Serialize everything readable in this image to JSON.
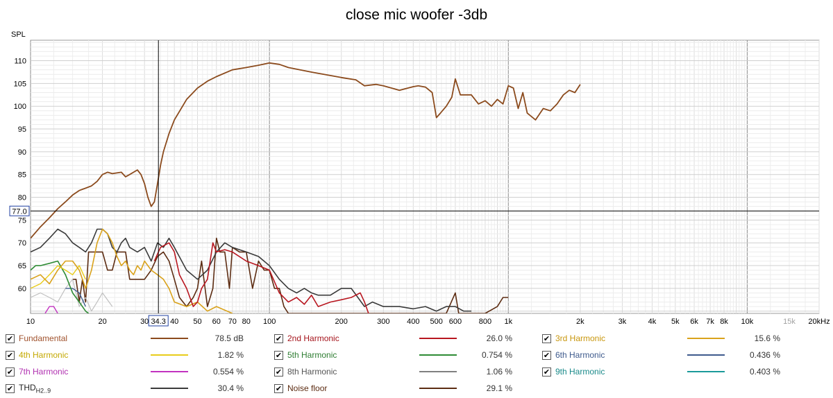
{
  "chart_data": {
    "type": "line",
    "title": "close mic woofer -3db",
    "ylabel": "SPL",
    "ylim": [
      54.5,
      114.5
    ],
    "xlim": [
      10,
      20000
    ],
    "xscale": "log",
    "grid": true,
    "cursor": {
      "x_label": "34.3",
      "y_label": "77.0",
      "x": 34.3,
      "y": 77.0
    },
    "y_ticks": [
      60,
      65,
      70,
      75,
      80,
      85,
      90,
      95,
      100,
      105,
      110
    ],
    "x_ticks": [
      {
        "v": 10,
        "t": "10"
      },
      {
        "v": 20,
        "t": "20"
      },
      {
        "v": 30,
        "t": "30"
      },
      {
        "v": 40,
        "t": "40"
      },
      {
        "v": 50,
        "t": "50"
      },
      {
        "v": 60,
        "t": "60"
      },
      {
        "v": 70,
        "t": "70"
      },
      {
        "v": 80,
        "t": "80"
      },
      {
        "v": 100,
        "t": "100"
      },
      {
        "v": 200,
        "t": "200"
      },
      {
        "v": 300,
        "t": "300"
      },
      {
        "v": 400,
        "t": "400"
      },
      {
        "v": 500,
        "t": "500"
      },
      {
        "v": 600,
        "t": "600"
      },
      {
        "v": 800,
        "t": "800"
      },
      {
        "v": 1000,
        "t": "1k"
      },
      {
        "v": 2000,
        "t": "2k"
      },
      {
        "v": 3000,
        "t": "3k"
      },
      {
        "v": 4000,
        "t": "4k"
      },
      {
        "v": 5000,
        "t": "5k"
      },
      {
        "v": 6000,
        "t": "6k"
      },
      {
        "v": 7000,
        "t": "7k"
      },
      {
        "v": 8000,
        "t": "8k"
      },
      {
        "v": 10000,
        "t": "10k"
      },
      {
        "v": 15000,
        "t": "15k"
      },
      {
        "v": 20000,
        "t": "20kHz"
      }
    ],
    "series": [
      {
        "name": "Fundamental",
        "color": "#8b4a1c",
        "width": 1.8,
        "x": [
          10,
          11,
          12,
          13,
          14,
          15,
          16,
          17,
          18,
          19,
          20,
          21,
          22,
          24,
          25,
          26,
          27,
          28,
          29,
          30,
          31,
          32,
          33,
          34,
          35,
          36,
          38,
          40,
          45,
          50,
          55,
          60,
          70,
          80,
          90,
          100,
          110,
          120,
          150,
          200,
          230,
          250,
          280,
          300,
          350,
          400,
          420,
          450,
          480,
          500,
          520,
          550,
          580,
          600,
          630,
          700,
          750,
          800,
          850,
          900,
          950,
          1000,
          1050,
          1100,
          1150,
          1200,
          1300,
          1400,
          1500,
          1600,
          1700,
          1800,
          1900,
          2000
        ],
        "y": [
          71,
          73.5,
          75.5,
          77.5,
          79,
          80.5,
          81.5,
          82,
          82.5,
          83.5,
          85,
          85.5,
          85.2,
          85.5,
          84.5,
          85,
          85.5,
          86,
          85,
          83,
          80,
          78,
          79,
          83,
          87,
          90,
          94,
          97,
          101.5,
          104,
          105.5,
          106.5,
          108,
          108.5,
          109,
          109.5,
          109.2,
          108.5,
          107.5,
          106.3,
          105.8,
          104.5,
          104.8,
          104.5,
          103.5,
          104.3,
          104.5,
          104.2,
          103,
          97.5,
          98.5,
          100,
          102,
          106,
          102.5,
          102.5,
          100.5,
          101.2,
          100,
          101.5,
          100.5,
          104.5,
          104,
          99.5,
          103,
          98.5,
          97,
          99.5,
          99,
          100.5,
          102.5,
          103.5,
          103,
          104.8
        ]
      },
      {
        "name": "2nd Harmonic",
        "color": "#b8161f",
        "width": 1.6,
        "x": [
          33,
          35,
          38,
          40,
          42,
          45,
          48,
          50,
          52,
          55,
          58,
          60,
          65,
          70,
          80,
          90,
          100,
          110,
          120,
          130,
          140,
          150,
          160,
          180,
          200,
          220,
          240,
          250,
          260
        ],
        "y": [
          66,
          69,
          70,
          68,
          63,
          60,
          56,
          57,
          60,
          62,
          70,
          68,
          68.5,
          68,
          66,
          65,
          64,
          59,
          57,
          58,
          56.5,
          58.5,
          56,
          57,
          57.5,
          58,
          59,
          57,
          54.5
        ]
      },
      {
        "name": "3rd Harmonic",
        "color": "#d9a21b",
        "width": 1.6,
        "x": [
          10,
          11,
          12,
          13,
          14,
          15,
          16,
          17,
          18,
          19,
          20,
          21,
          22,
          23,
          24,
          25,
          26,
          27,
          28,
          29,
          30,
          32,
          34,
          36,
          38,
          40,
          45,
          50,
          55,
          60,
          70
        ],
        "y": [
          62,
          63,
          61,
          64,
          66,
          66,
          64,
          60,
          64,
          70,
          73,
          72,
          70,
          67,
          65,
          66,
          64,
          63,
          65,
          64,
          66,
          64,
          63,
          62,
          60,
          57,
          56,
          57,
          55,
          56,
          54.5
        ]
      },
      {
        "name": "4th Harmonic",
        "color": "#e8cc1a",
        "width": 1.4,
        "x": [
          10,
          11,
          12,
          13,
          14,
          15,
          16,
          17
        ],
        "y": [
          60,
          61,
          63,
          65,
          64,
          63,
          65,
          62
        ]
      },
      {
        "name": "5th Harmonic",
        "color": "#2e8b34",
        "width": 1.6,
        "x": [
          10,
          10.5,
          11,
          12,
          13,
          14,
          15,
          16,
          17,
          17.5
        ],
        "y": [
          64,
          65,
          65,
          65.5,
          66,
          63,
          59,
          57,
          55,
          54.5
        ]
      },
      {
        "name": "6th Harmonic",
        "color": "#3e5a8c",
        "width": 1.4,
        "x": [
          14,
          15,
          16,
          17
        ],
        "y": [
          60,
          60,
          59,
          56
        ]
      },
      {
        "name": "7th Harmonic",
        "color": "#c232c0",
        "width": 1.4,
        "x": [
          11.5,
          12,
          12.5,
          13
        ],
        "y": [
          54.5,
          56,
          56,
          54.5
        ]
      },
      {
        "name": "8th Harmonic",
        "color": "#c0c0c0",
        "width": 1.2,
        "x": [
          10,
          11,
          12,
          13,
          14,
          15,
          16,
          17,
          18,
          19,
          20,
          22
        ],
        "y": [
          58,
          59,
          58,
          57,
          60,
          62,
          56,
          58,
          55,
          57,
          59,
          56
        ]
      },
      {
        "name": "THD",
        "color": "#3a3a3a",
        "width": 1.6,
        "x": [
          10,
          11,
          12,
          13,
          14,
          15,
          16,
          17,
          18,
          19,
          20,
          21,
          22,
          23,
          24,
          25,
          26,
          28,
          30,
          32,
          34,
          36,
          38,
          40,
          45,
          50,
          55,
          60,
          65,
          70,
          80,
          90,
          100,
          110,
          120,
          130,
          140,
          150,
          160,
          180,
          200,
          220,
          250,
          270,
          300,
          350,
          400,
          450,
          500,
          550,
          600,
          650,
          700
        ],
        "y": [
          68,
          69,
          71,
          73,
          72,
          70,
          69,
          68,
          70,
          73,
          73,
          72,
          69,
          68,
          70,
          71,
          69,
          68,
          69,
          66,
          70,
          69,
          71,
          69,
          64,
          62,
          64,
          68,
          70,
          69,
          68,
          67,
          65,
          62,
          60,
          59,
          60,
          59,
          58.5,
          58.5,
          60,
          60,
          56,
          57,
          56,
          56,
          55.5,
          56,
          55,
          56,
          56,
          55,
          55
        ]
      },
      {
        "name": "Noise floor",
        "color": "#5c2c12",
        "width": 1.6,
        "x": [
          15,
          15.5,
          16,
          16.5,
          17,
          17.5,
          18,
          19,
          20,
          21,
          22,
          23,
          24,
          25,
          26,
          27,
          28,
          29,
          30,
          32,
          34,
          36,
          38,
          40,
          42,
          45,
          48,
          50,
          52,
          55,
          58,
          60,
          62,
          65,
          68,
          70,
          75,
          80,
          85,
          90,
          95,
          100,
          105,
          110,
          115,
          120,
          125,
          130,
          140,
          150,
          200,
          250,
          300,
          350,
          400,
          450,
          500,
          550,
          600,
          620,
          650,
          700,
          800,
          900,
          950,
          1000
        ],
        "y": [
          62,
          62,
          57,
          62,
          57,
          68,
          68,
          68,
          68,
          64,
          64,
          68,
          68,
          68,
          62,
          62,
          62,
          62,
          62,
          64,
          67,
          68,
          66,
          62,
          58,
          56,
          58,
          60,
          66,
          56,
          60,
          71,
          68,
          68,
          60,
          69,
          68,
          68,
          60,
          66,
          64,
          64,
          60,
          60,
          56,
          54.5,
          54.5,
          54.5,
          54.5,
          54.5,
          54.5,
          54.5,
          54.5,
          54.5,
          54.5,
          54.5,
          54.5,
          54.5,
          59,
          54.5,
          54.5,
          54.5,
          54.5,
          56,
          58,
          58
        ]
      }
    ]
  },
  "legend": [
    {
      "label": "Fundamental",
      "value": "78.5 dB",
      "color": "#8b4a1c",
      "label_color": "#a0522d"
    },
    {
      "label": "2nd Harmonic",
      "value": "26.0 %",
      "color": "#b8161f",
      "label_color": "#a5141c"
    },
    {
      "label": "3rd Harmonic",
      "value": "15.6 %",
      "color": "#d9a21b",
      "label_color": "#c8960c"
    },
    {
      "label": "4th Harmonic",
      "value": "1.82 %",
      "color": "#e8cc1a",
      "label_color": "#c4a800"
    },
    {
      "label": "5th Harmonic",
      "value": "0.754 %",
      "color": "#2e8b34",
      "label_color": "#2e7d32"
    },
    {
      "label": "6th Harmonic",
      "value": "0.436 %",
      "color": "#3e5a8c",
      "label_color": "#3e5a8c"
    },
    {
      "label": "7th Harmonic",
      "value": "0.554 %",
      "color": "#c232c0",
      "label_color": "#b030b0"
    },
    {
      "label": "8th Harmonic",
      "value": "1.06 %",
      "color": "#808080",
      "label_color": "#555555"
    },
    {
      "label": "9th Harmonic",
      "value": "0.403 %",
      "color": "#1a9a9a",
      "label_color": "#1a8a8a"
    },
    {
      "label": "THD",
      "label_sub": "H2..9",
      "value": "30.4 %",
      "color": "#3a3a3a",
      "label_color": "#222222"
    },
    {
      "label": "Noise floor",
      "value": "29.1 %",
      "color": "#5c2c12",
      "label_color": "#5c2c12"
    }
  ]
}
